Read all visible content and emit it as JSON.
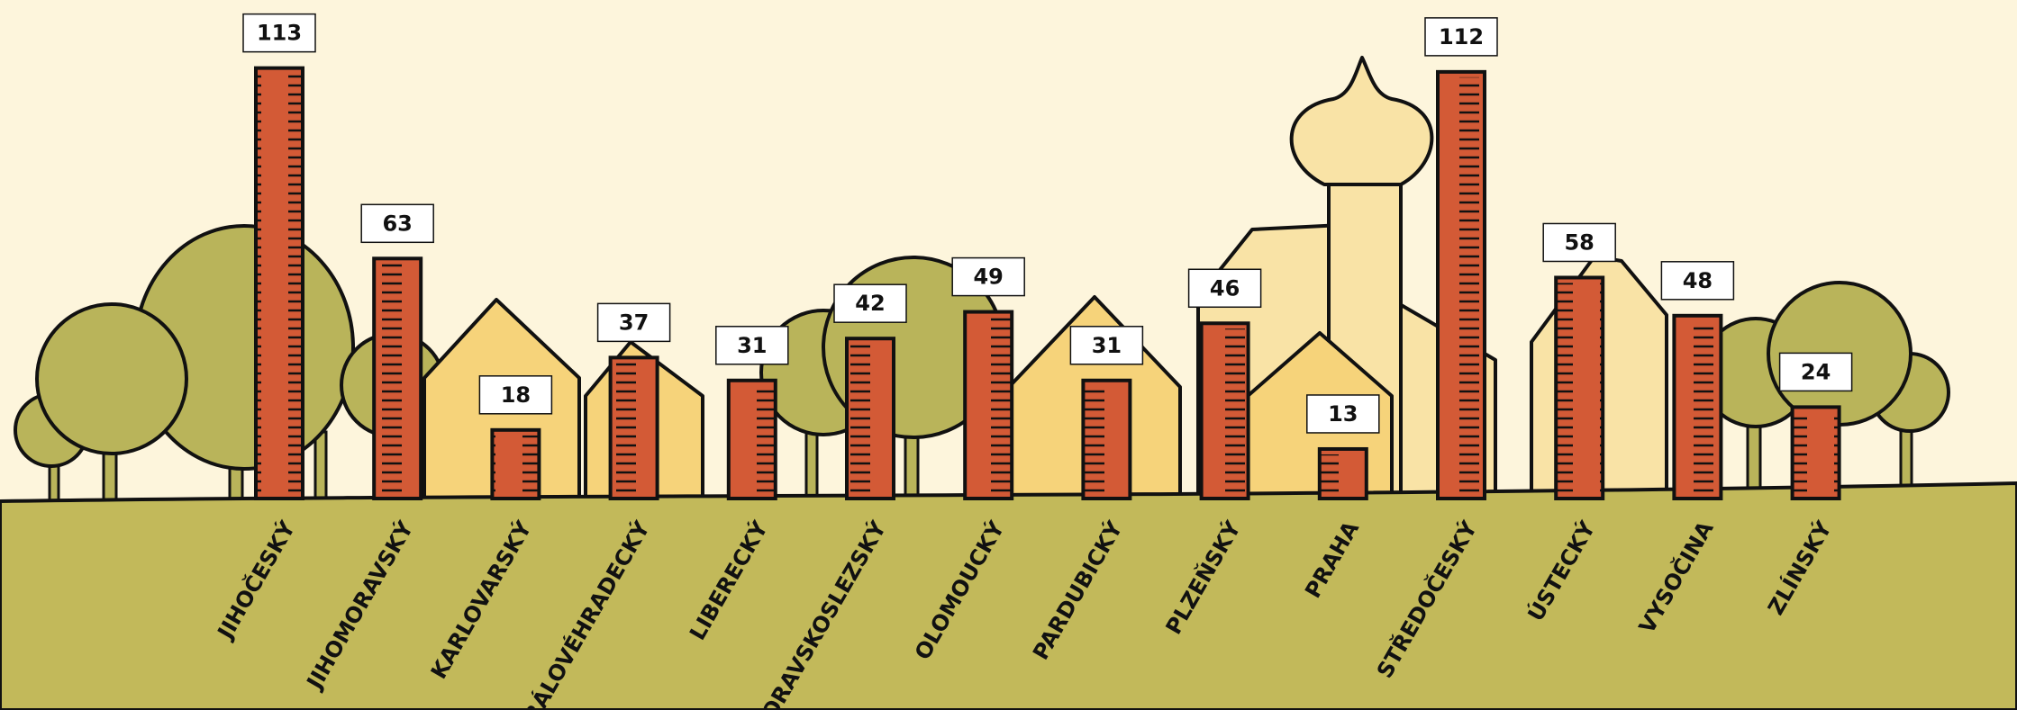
{
  "chart_data": {
    "type": "bar",
    "categories": [
      "JIHOČESKÝ",
      "JIHOMORAVSKÝ",
      "KARLOVARSKÝ",
      "KRÁLOVÉHRADECKÝ",
      "LIBERECKÝ",
      "MORAVSKOSLEZSKÝ",
      "OLOMOUCKÝ",
      "PARDUBICKÝ",
      "PLZEŇSKÝ",
      "PRAHA",
      "STŘEDOČESKÝ",
      "ÚSTECKÝ",
      "VYSOČINA",
      "ZLÍNSKÝ"
    ],
    "values": [
      113,
      63,
      18,
      37,
      31,
      42,
      49,
      31,
      46,
      13,
      112,
      58,
      48,
      24
    ],
    "color": "#d35a36",
    "ylim": [
      0,
      120
    ]
  }
}
